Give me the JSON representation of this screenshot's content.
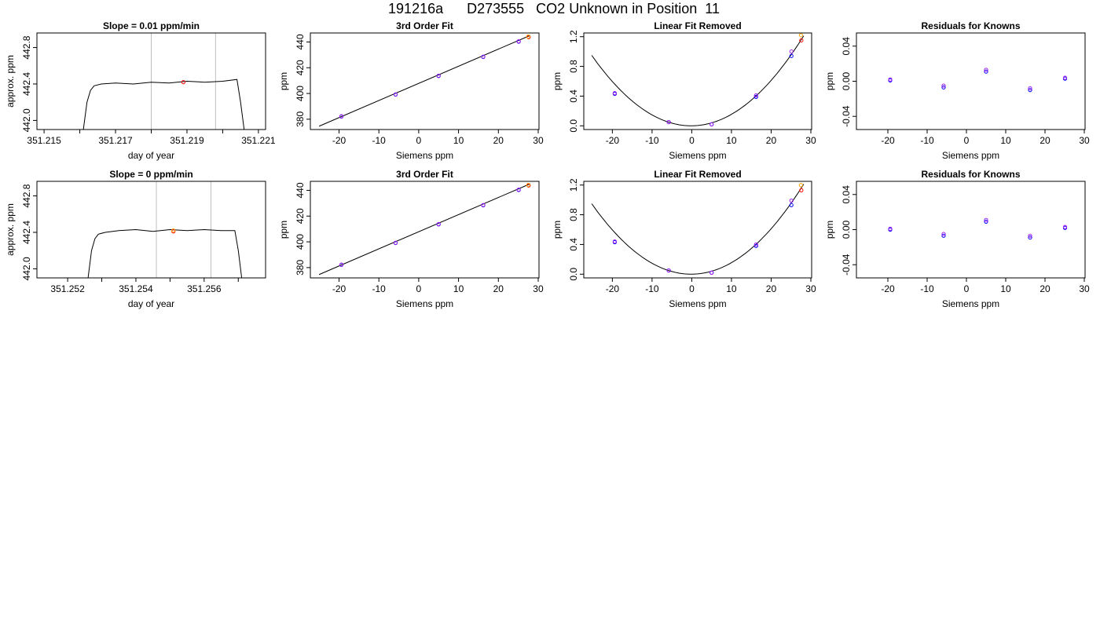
{
  "title": "191216a      D273555   CO2 Unknown in Position  11",
  "colors": {
    "trace": "#000000",
    "marker_red": "#ff0000",
    "marker_blue": "#0000ff",
    "marker_purple": "#a020f0",
    "marker_orange": "#ffa500",
    "vline": "#bebebe"
  },
  "chart_data": [
    {
      "type": "line",
      "title": "Slope =  0.01  ppm/min",
      "xlabel": "day of year",
      "ylabel": "approx. ppm",
      "xlim": [
        351.2148,
        351.2212
      ],
      "ylim": [
        441.9,
        442.96
      ],
      "xticks": [
        351.215,
        351.216,
        351.217,
        351.218,
        351.219,
        351.22,
        351.221
      ],
      "xtick_labels": [
        "351.215",
        "",
        "351.217",
        "",
        "351.219",
        "",
        "351.221"
      ],
      "yticks": [
        442.0,
        442.4,
        442.8
      ],
      "ytick_labels": [
        "442.0",
        "442.4",
        "442.8"
      ],
      "vlines": [
        351.218,
        351.2198
      ],
      "trace": {
        "x": [
          351.2161,
          351.2162,
          351.2163,
          351.2164,
          351.2166,
          351.217,
          351.2175,
          351.218,
          351.2185,
          351.219,
          351.2195,
          351.22,
          351.2204,
          351.2205,
          351.2206
        ],
        "y": [
          441.9,
          442.2,
          442.33,
          442.38,
          442.4,
          442.41,
          442.4,
          442.42,
          442.41,
          442.43,
          442.42,
          442.43,
          442.45,
          442.2,
          441.9
        ]
      },
      "markers": [
        {
          "x": 351.2189,
          "y": 442.42,
          "color": "red"
        }
      ]
    },
    {
      "type": "scatter",
      "title": "3rd Order Fit",
      "xlabel": "Siemens ppm",
      "ylabel": "ppm",
      "xlim": [
        -27.2,
        30.2
      ],
      "ylim": [
        372.0,
        447.0
      ],
      "xticks": [
        -20,
        -10,
        0,
        10,
        20,
        30
      ],
      "xtick_labels": [
        "-20",
        "-10",
        "0",
        "10",
        "20",
        "30"
      ],
      "yticks": [
        380,
        400,
        420,
        440
      ],
      "ytick_labels": [
        "380",
        "400",
        "420",
        "440"
      ],
      "fit_line": {
        "x": [
          -25,
          28
        ],
        "y": [
          374.6,
          445.1
        ]
      },
      "points": [
        {
          "x": -19.4,
          "y": 382.1,
          "color": "blue"
        },
        {
          "x": -19.4,
          "y": 382.3,
          "color": "purple"
        },
        {
          "x": -5.8,
          "y": 399.1,
          "color": "blue"
        },
        {
          "x": -5.8,
          "y": 399.3,
          "color": "purple"
        },
        {
          "x": 5.0,
          "y": 413.6,
          "color": "blue"
        },
        {
          "x": 5.0,
          "y": 413.8,
          "color": "purple"
        },
        {
          "x": 16.2,
          "y": 428.4,
          "color": "blue"
        },
        {
          "x": 16.2,
          "y": 428.6,
          "color": "purple"
        },
        {
          "x": 25.1,
          "y": 440.3,
          "color": "blue"
        },
        {
          "x": 25.1,
          "y": 440.5,
          "color": "purple"
        },
        {
          "x": 27.6,
          "y": 443.8,
          "color": "red"
        },
        {
          "x": 27.5,
          "y": 444.2,
          "color": "orange"
        }
      ]
    },
    {
      "type": "scatter",
      "title": "Linear Fit Removed",
      "xlabel": "Siemens ppm",
      "ylabel": "ppm",
      "xlim": [
        -27.2,
        30.2
      ],
      "ylim": [
        -0.05,
        1.25
      ],
      "xticks": [
        -20,
        -10,
        0,
        10,
        20,
        30
      ],
      "xtick_labels": [
        "-20",
        "-10",
        "0",
        "10",
        "20",
        "30"
      ],
      "yticks": [
        0.0,
        0.4,
        0.8,
        1.2
      ],
      "ytick_labels": [
        "0.0",
        "0.4",
        "0.8",
        "1.2"
      ],
      "curve": {
        "a": 0.00151,
        "b": 0.0004,
        "c": 0.0,
        "xrange": [
          -25.2,
          28.2
        ]
      },
      "points": [
        {
          "x": -19.4,
          "y": 0.43,
          "color": "blue"
        },
        {
          "x": -19.4,
          "y": 0.44,
          "color": "purple"
        },
        {
          "x": -5.8,
          "y": 0.05,
          "color": "blue"
        },
        {
          "x": -5.8,
          "y": 0.05,
          "color": "purple"
        },
        {
          "x": 5.0,
          "y": 0.02,
          "color": "blue"
        },
        {
          "x": 5.0,
          "y": 0.02,
          "color": "purple"
        },
        {
          "x": 16.2,
          "y": 0.39,
          "color": "blue"
        },
        {
          "x": 16.2,
          "y": 0.41,
          "color": "purple"
        },
        {
          "x": 25.1,
          "y": 0.94,
          "color": "blue"
        },
        {
          "x": 25.1,
          "y": 1.0,
          "color": "purple"
        },
        {
          "x": 27.6,
          "y": 1.15,
          "color": "red"
        },
        {
          "x": 27.5,
          "y": 1.22,
          "color": "orange"
        }
      ]
    },
    {
      "type": "scatter",
      "title": "Residuals for Knowns",
      "xlabel": "Siemens ppm",
      "ylabel": "ppm",
      "xlim": [
        -28.0,
        30.2
      ],
      "ylim": [
        -0.055,
        0.055
      ],
      "xticks": [
        -20,
        -10,
        0,
        10,
        20,
        30
      ],
      "xtick_labels": [
        "-20",
        "-10",
        "0",
        "10",
        "20",
        "30"
      ],
      "yticks": [
        -0.04,
        0.0,
        0.04
      ],
      "ytick_labels": [
        "-0.04",
        "0.00",
        "0.04"
      ],
      "points": [
        {
          "x": -19.4,
          "y": 0.001,
          "color": "blue"
        },
        {
          "x": -19.4,
          "y": 0.002,
          "color": "purple"
        },
        {
          "x": -5.8,
          "y": -0.007,
          "color": "blue"
        },
        {
          "x": -5.8,
          "y": -0.005,
          "color": "purple"
        },
        {
          "x": 5.0,
          "y": 0.011,
          "color": "blue"
        },
        {
          "x": 5.0,
          "y": 0.013,
          "color": "purple"
        },
        {
          "x": 16.2,
          "y": -0.01,
          "color": "blue"
        },
        {
          "x": 16.2,
          "y": -0.008,
          "color": "purple"
        },
        {
          "x": 25.1,
          "y": 0.003,
          "color": "blue"
        },
        {
          "x": 25.1,
          "y": 0.004,
          "color": "purple"
        }
      ]
    },
    {
      "type": "line",
      "title": "Slope =  0  ppm/min",
      "xlabel": "day of year",
      "ylabel": "approx. ppm",
      "xlim": [
        351.2511,
        351.2578
      ],
      "ylim": [
        441.9,
        442.96
      ],
      "xticks": [
        351.252,
        351.253,
        351.254,
        351.255,
        351.256,
        351.257
      ],
      "xtick_labels": [
        "351.252",
        "",
        "351.254",
        "",
        "351.256",
        ""
      ],
      "yticks": [
        442.0,
        442.4,
        442.8
      ],
      "ytick_labels": [
        "442.0",
        "442.4",
        "442.8"
      ],
      "vlines": [
        351.2546,
        351.2562
      ],
      "trace": {
        "x": [
          351.2526,
          351.2527,
          351.2528,
          351.2529,
          351.2531,
          351.2535,
          351.254,
          351.2545,
          351.255,
          351.2555,
          351.256,
          351.2565,
          351.2569,
          351.257,
          351.2571
        ],
        "y": [
          441.9,
          442.2,
          442.33,
          442.38,
          442.4,
          442.42,
          442.43,
          442.41,
          442.43,
          442.42,
          442.43,
          442.42,
          442.42,
          442.2,
          441.9
        ]
      },
      "markers": [
        {
          "x": 351.2551,
          "y": 442.41,
          "color": "red"
        },
        {
          "x": 351.2551,
          "y": 442.42,
          "color": "orange"
        }
      ]
    },
    {
      "type": "scatter",
      "title": "3rd Order Fit",
      "xlabel": "Siemens ppm",
      "ylabel": "ppm",
      "xlim": [
        -27.2,
        30.2
      ],
      "ylim": [
        372.0,
        447.0
      ],
      "xticks": [
        -20,
        -10,
        0,
        10,
        20,
        30
      ],
      "xtick_labels": [
        "-20",
        "-10",
        "0",
        "10",
        "20",
        "30"
      ],
      "yticks": [
        380,
        400,
        420,
        440
      ],
      "ytick_labels": [
        "380",
        "400",
        "420",
        "440"
      ],
      "fit_line": {
        "x": [
          -25,
          28
        ],
        "y": [
          374.6,
          445.1
        ]
      },
      "points": [
        {
          "x": -19.4,
          "y": 382.1,
          "color": "blue"
        },
        {
          "x": -19.4,
          "y": 382.3,
          "color": "purple"
        },
        {
          "x": -5.8,
          "y": 399.1,
          "color": "blue"
        },
        {
          "x": -5.8,
          "y": 399.3,
          "color": "purple"
        },
        {
          "x": 5.0,
          "y": 413.6,
          "color": "blue"
        },
        {
          "x": 5.0,
          "y": 413.8,
          "color": "purple"
        },
        {
          "x": 16.2,
          "y": 428.4,
          "color": "blue"
        },
        {
          "x": 16.2,
          "y": 428.6,
          "color": "purple"
        },
        {
          "x": 25.1,
          "y": 440.3,
          "color": "blue"
        },
        {
          "x": 25.1,
          "y": 440.5,
          "color": "purple"
        },
        {
          "x": 27.6,
          "y": 443.8,
          "color": "red"
        },
        {
          "x": 27.5,
          "y": 444.2,
          "color": "orange"
        }
      ]
    },
    {
      "type": "scatter",
      "title": "Linear Fit Removed",
      "xlabel": "Siemens ppm",
      "ylabel": "ppm",
      "xlim": [
        -27.2,
        30.2
      ],
      "ylim": [
        -0.05,
        1.25
      ],
      "xticks": [
        -20,
        -10,
        0,
        10,
        20,
        30
      ],
      "xtick_labels": [
        "-20",
        "-10",
        "0",
        "10",
        "20",
        "30"
      ],
      "yticks": [
        0.0,
        0.4,
        0.8,
        1.2
      ],
      "ytick_labels": [
        "0.0",
        "0.4",
        "0.8",
        "1.2"
      ],
      "curve": {
        "a": 0.00151,
        "b": 0.0004,
        "c": 0.0,
        "xrange": [
          -25.2,
          28.2
        ]
      },
      "points": [
        {
          "x": -19.4,
          "y": 0.43,
          "color": "blue"
        },
        {
          "x": -19.4,
          "y": 0.44,
          "color": "purple"
        },
        {
          "x": -5.8,
          "y": 0.05,
          "color": "blue"
        },
        {
          "x": -5.8,
          "y": 0.05,
          "color": "purple"
        },
        {
          "x": 5.0,
          "y": 0.02,
          "color": "blue"
        },
        {
          "x": 5.0,
          "y": 0.02,
          "color": "purple"
        },
        {
          "x": 16.2,
          "y": 0.38,
          "color": "blue"
        },
        {
          "x": 16.2,
          "y": 0.4,
          "color": "purple"
        },
        {
          "x": 25.1,
          "y": 0.93,
          "color": "blue"
        },
        {
          "x": 25.1,
          "y": 0.99,
          "color": "purple"
        },
        {
          "x": 27.6,
          "y": 1.13,
          "color": "red"
        },
        {
          "x": 27.5,
          "y": 1.2,
          "color": "orange"
        }
      ]
    },
    {
      "type": "scatter",
      "title": "Residuals for Knowns",
      "xlabel": "Siemens ppm",
      "ylabel": "ppm",
      "xlim": [
        -28.0,
        30.2
      ],
      "ylim": [
        -0.055,
        0.055
      ],
      "xticks": [
        -20,
        -10,
        0,
        10,
        20,
        30
      ],
      "xtick_labels": [
        "-20",
        "-10",
        "0",
        "10",
        "20",
        "30"
      ],
      "yticks": [
        -0.04,
        0.0,
        0.04
      ],
      "ytick_labels": [
        "-0.04",
        "0.00",
        "0.04"
      ],
      "points": [
        {
          "x": -19.4,
          "y": 0.0,
          "color": "blue"
        },
        {
          "x": -19.4,
          "y": 0.001,
          "color": "purple"
        },
        {
          "x": -5.8,
          "y": -0.007,
          "color": "blue"
        },
        {
          "x": -5.8,
          "y": -0.005,
          "color": "purple"
        },
        {
          "x": 5.0,
          "y": 0.009,
          "color": "blue"
        },
        {
          "x": 5.0,
          "y": 0.011,
          "color": "purple"
        },
        {
          "x": 16.2,
          "y": -0.009,
          "color": "blue"
        },
        {
          "x": 16.2,
          "y": -0.007,
          "color": "purple"
        },
        {
          "x": 25.1,
          "y": 0.002,
          "color": "blue"
        },
        {
          "x": 25.1,
          "y": 0.003,
          "color": "purple"
        }
      ]
    }
  ]
}
